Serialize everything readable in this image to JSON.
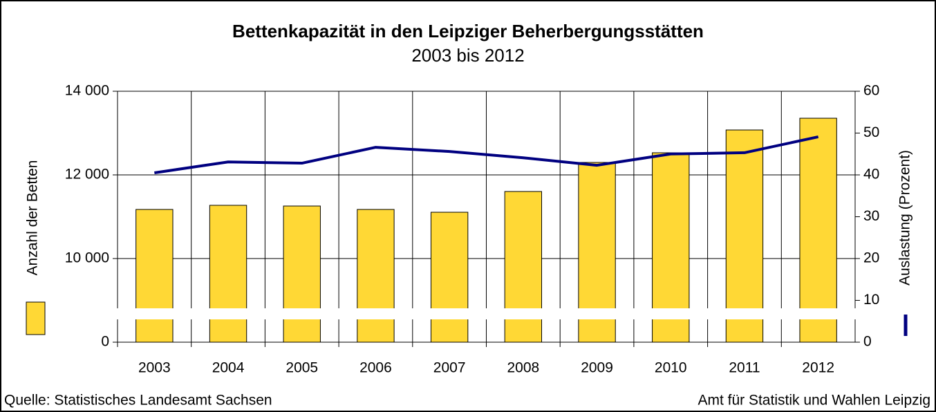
{
  "chart_data": {
    "type": "bar_line",
    "title": "Bettenkapazität in den Leipziger Beherbergungsstätten",
    "subtitle": "2003 bis 2012",
    "categories": [
      "2003",
      "2004",
      "2005",
      "2006",
      "2007",
      "2008",
      "2009",
      "2010",
      "2011",
      "2012"
    ],
    "series": [
      {
        "type": "bar",
        "color": "#ffd835",
        "values": [
          11174,
          11273,
          11256,
          11174,
          11107,
          11603,
          12298,
          12529,
          13074,
          13355
        ]
      },
      {
        "type": "line",
        "axis": "y2",
        "color": "#000080",
        "values": [
          40.5,
          43.1,
          42.8,
          46.6,
          45.6,
          44.1,
          42.3,
          45.0,
          45.3,
          49.1
        ]
      }
    ],
    "ylim": [
      0,
      14000
    ],
    "y_break": [
      2000,
      10000
    ],
    "yticks": [
      0,
      {
        "value": 10000,
        "label": "10 000"
      },
      {
        "value": 12000,
        "label": "12 000"
      },
      {
        "value": 14000,
        "label": "14 000"
      }
    ],
    "y2lim": [
      0,
      60
    ],
    "y2ticks": [
      0,
      10,
      20,
      30,
      40,
      50,
      60
    ],
    "y_label": "Anzahl der Betten",
    "y2_label": "Auslastung (Prozent)",
    "grid": true,
    "source": "Quelle: Statistisches Landesamt Sachsen",
    "publisher": "Amt für Statistik und Wahlen Leipzig"
  }
}
